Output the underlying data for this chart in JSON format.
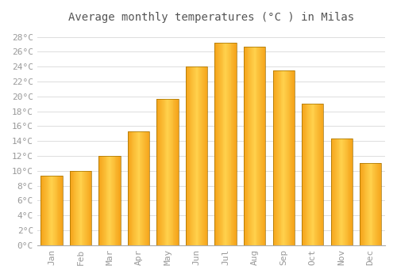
{
  "title": "Average monthly temperatures (°C ) in Milas",
  "months": [
    "Jan",
    "Feb",
    "Mar",
    "Apr",
    "May",
    "Jun",
    "Jul",
    "Aug",
    "Sep",
    "Oct",
    "Nov",
    "Dec"
  ],
  "values": [
    9.3,
    10.0,
    12.0,
    15.3,
    19.7,
    24.0,
    27.2,
    26.7,
    23.5,
    19.0,
    14.3,
    11.0
  ],
  "bar_color_left": "#F5A800",
  "bar_color_mid": "#FFD050",
  "bar_color_right": "#F5A800",
  "bar_edge_color": "#999900",
  "background_color": "#FFFFFF",
  "grid_color": "#DDDDDD",
  "text_color": "#999999",
  "title_color": "#555555",
  "ylim": [
    0,
    29
  ],
  "ytick_step": 2,
  "title_fontsize": 10,
  "tick_fontsize": 8,
  "font_family": "monospace"
}
